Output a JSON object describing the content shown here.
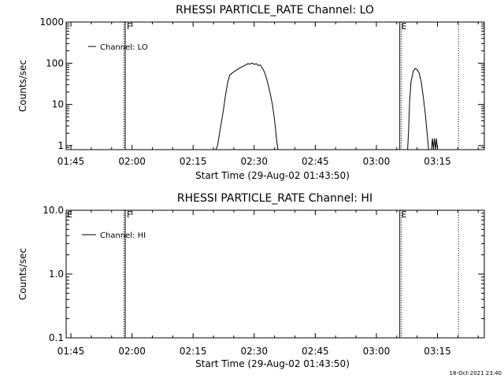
{
  "footer_timestamp": "18-Oct-2021 23:40",
  "chart_data": [
    {
      "type": "line",
      "title": "RHESSI PARTICLE_RATE Channel: LO",
      "xlabel": "Start Time (29-Aug-02 01:43:50)",
      "ylabel": "Counts/sec",
      "yscale": "log",
      "ylim": [
        0.8,
        1000
      ],
      "ytick_values": [
        1,
        10,
        100,
        1000
      ],
      "ytick_labels": [
        "1",
        "10",
        "100",
        "1000"
      ],
      "xlim": [
        "01:43:50",
        "03:26:30"
      ],
      "xtick_labels": [
        "01:45",
        "02:00",
        "02:15",
        "02:30",
        "02:45",
        "03:00",
        "03:15"
      ],
      "legend": {
        "placement": "top-left",
        "entries": [
          "Channel: LO"
        ]
      },
      "markers": [
        {
          "label": "F",
          "time": "01:58:00",
          "style": "dotted",
          "label_shown": false
        },
        {
          "label": "F",
          "time": "01:58:20",
          "style": "solid",
          "label_shown": true
        },
        {
          "label": "E",
          "time": "03:05:45",
          "style": "solid",
          "label_shown": true
        },
        {
          "label": "E",
          "time": "03:06:10",
          "style": "dotted",
          "label_shown": false
        },
        {
          "label": "",
          "time": "03:20:10",
          "style": "dotted",
          "label_shown": false
        }
      ],
      "series": [
        {
          "points": [
            [
              "02:20:35",
              0.8
            ],
            [
              "02:21:00",
              1.0
            ],
            [
              "02:21:30",
              2.0
            ],
            [
              "02:22:00",
              4.0
            ],
            [
              "02:22:30",
              8.0
            ],
            [
              "02:23:00",
              18
            ],
            [
              "02:23:30",
              35
            ],
            [
              "02:24:00",
              52
            ],
            [
              "02:25:00",
              62
            ],
            [
              "02:26:00",
              72
            ],
            [
              "02:27:00",
              82
            ],
            [
              "02:28:00",
              92
            ],
            [
              "02:28:30",
              98
            ],
            [
              "02:29:00",
              95
            ],
            [
              "02:29:30",
              101
            ],
            [
              "02:30:00",
              94
            ],
            [
              "02:30:30",
              98
            ],
            [
              "02:31:00",
              88
            ],
            [
              "02:31:30",
              91
            ],
            [
              "02:32:00",
              76
            ],
            [
              "02:32:30",
              62
            ],
            [
              "02:33:00",
              44
            ],
            [
              "02:33:30",
              28
            ],
            [
              "02:34:00",
              17
            ],
            [
              "02:34:30",
              9.5
            ],
            [
              "02:35:00",
              4.2
            ],
            [
              "02:35:30",
              1.4
            ],
            [
              "02:35:50",
              0.8
            ]
          ]
        },
        {
          "points": [
            [
              "03:07:40",
              0.8
            ],
            [
              "03:07:55",
              2.5
            ],
            [
              "03:08:10",
              12
            ],
            [
              "03:08:30",
              35
            ],
            [
              "03:09:00",
              62
            ],
            [
              "03:09:30",
              75
            ],
            [
              "03:10:00",
              70
            ],
            [
              "03:10:30",
              58
            ],
            [
              "03:11:00",
              36
            ],
            [
              "03:11:30",
              16
            ],
            [
              "03:12:00",
              6.0
            ],
            [
              "03:12:30",
              1.8
            ],
            [
              "03:12:50",
              0.8
            ]
          ]
        },
        {
          "points": [
            [
              "03:13:30",
              0.8
            ],
            [
              "03:13:45",
              1.5
            ],
            [
              "03:14:00",
              0.8
            ],
            [
              "03:14:15",
              1.5
            ],
            [
              "03:14:30",
              0.8
            ],
            [
              "03:14:45",
              1.5
            ],
            [
              "03:15:00",
              0.8
            ]
          ]
        }
      ]
    },
    {
      "type": "line",
      "title": "RHESSI PARTICLE_RATE Channel: HI",
      "xlabel": "Start Time (29-Aug-02 01:43:50)",
      "ylabel": "Counts/sec",
      "yscale": "log",
      "ylim": [
        0.1,
        10
      ],
      "ytick_values": [
        0.1,
        1,
        10
      ],
      "ytick_labels": [
        "0.1",
        "1.0",
        "10.0"
      ],
      "xlim": [
        "01:43:50",
        "03:26:30"
      ],
      "xtick_labels": [
        "01:45",
        "02:00",
        "02:15",
        "02:30",
        "02:45",
        "03:00",
        "03:15"
      ],
      "legend": {
        "placement": "top-left",
        "entries": [
          "Channel: HI"
        ]
      },
      "markers": [
        {
          "label": "F",
          "time": "01:58:00",
          "style": "dotted",
          "label_shown": false
        },
        {
          "label": "F",
          "time": "01:58:20",
          "style": "solid",
          "label_shown": true
        },
        {
          "label": "E",
          "time": "03:05:45",
          "style": "solid",
          "label_shown": true
        },
        {
          "label": "E",
          "time": "03:06:10",
          "style": "dotted",
          "label_shown": false
        },
        {
          "label": "",
          "time": "03:20:10",
          "style": "dotted",
          "label_shown": false
        }
      ],
      "corner_label": "E",
      "series": []
    }
  ]
}
